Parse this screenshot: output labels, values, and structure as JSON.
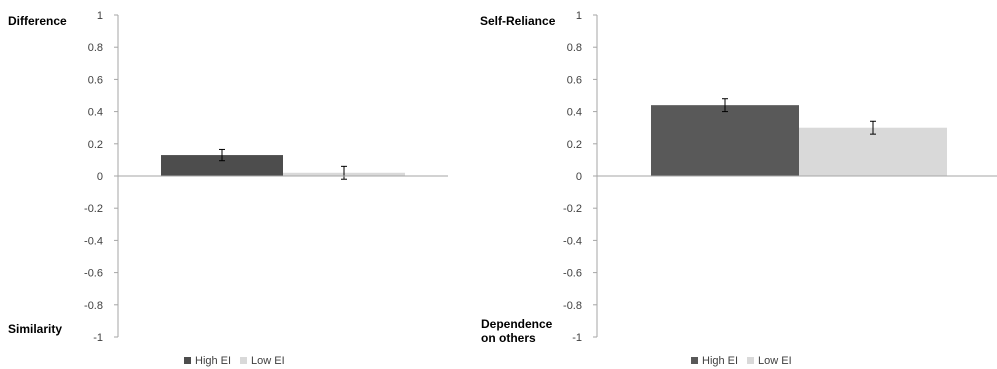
{
  "chart_data": [
    {
      "type": "bar",
      "categories": [
        ""
      ],
      "top_label": "Difference",
      "bottom_label": "Similarity",
      "ylim": [
        -1,
        1
      ],
      "yticks": [
        1,
        0.8,
        0.6,
        0.4,
        0.2,
        0,
        -0.2,
        -0.4,
        -0.6,
        -0.8,
        -1
      ],
      "grid": false,
      "legend_position": "bottom",
      "series": [
        {
          "name": "High EI",
          "values": [
            0.13
          ],
          "error": [
            0.035
          ],
          "color": "#4d4d4d"
        },
        {
          "name": "Low EI",
          "values": [
            0.02
          ],
          "error": [
            0.04
          ],
          "color": "#d9d9d9"
        }
      ]
    },
    {
      "type": "bar",
      "categories": [
        ""
      ],
      "top_label": "Self-Reliance",
      "bottom_label": "Dependence\non others",
      "ylim": [
        -1,
        1
      ],
      "yticks": [
        1,
        0.8,
        0.6,
        0.4,
        0.2,
        0,
        -0.2,
        -0.4,
        -0.6,
        -0.8,
        -1
      ],
      "grid": false,
      "legend_position": "bottom",
      "series": [
        {
          "name": "High EI",
          "values": [
            0.44
          ],
          "error": [
            0.04
          ],
          "color": "#595959"
        },
        {
          "name": "Low EI",
          "values": [
            0.3
          ],
          "error": [
            0.04
          ],
          "color": "#d9d9d9"
        }
      ]
    }
  ]
}
